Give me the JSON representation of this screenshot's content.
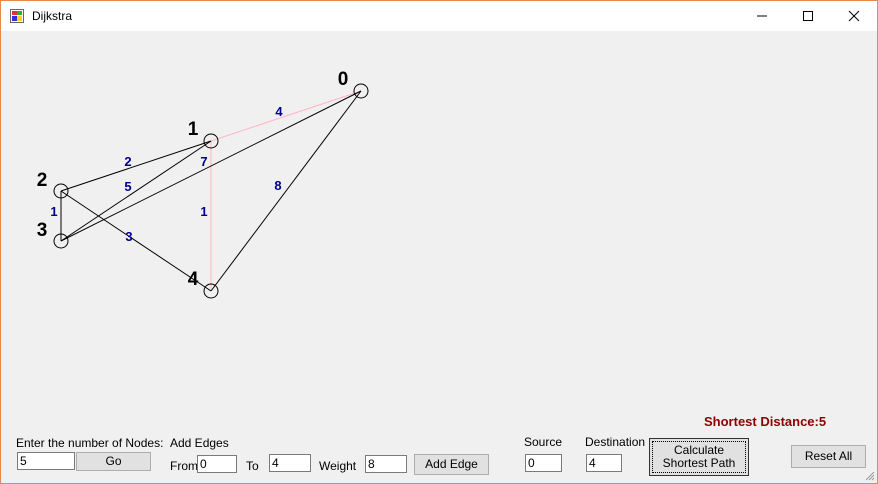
{
  "window": {
    "title": "Dijkstra"
  },
  "graph": {
    "nodes": [
      {
        "id": "0",
        "label": "0"
      },
      {
        "id": "1",
        "label": "1"
      },
      {
        "id": "2",
        "label": "2"
      },
      {
        "id": "3",
        "label": "3"
      },
      {
        "id": "4",
        "label": "4"
      }
    ],
    "edges": [
      {
        "from": "0",
        "to": "1",
        "weight": "4",
        "on_shortest_path": true
      },
      {
        "from": "1",
        "to": "4",
        "weight": "1",
        "on_shortest_path": true
      },
      {
        "from": "2",
        "to": "1",
        "weight": "2",
        "on_shortest_path": false
      },
      {
        "from": "3",
        "to": "1",
        "weight": "5",
        "on_shortest_path": false
      },
      {
        "from": "3",
        "to": "0",
        "weight": "7",
        "on_shortest_path": false
      },
      {
        "from": "2",
        "to": "3",
        "weight": "1",
        "on_shortest_path": false
      },
      {
        "from": "2",
        "to": "4",
        "weight": "3",
        "on_shortest_path": false
      },
      {
        "from": "0",
        "to": "4",
        "weight": "8",
        "on_shortest_path": false
      }
    ],
    "colors": {
      "edge": "#000000",
      "path_edge": "#ffb6c1",
      "weight": "#00008b",
      "node": "#000000"
    }
  },
  "controls": {
    "nodes_label": "Enter the number of Nodes:",
    "nodes_value": "5",
    "go_label": "Go",
    "add_edges_label": "Add Edges",
    "from_label": "From",
    "from_value": "0",
    "to_label": "To",
    "to_value": "4",
    "weight_label": "Weight",
    "weight_value": "8",
    "add_edge_label": "Add Edge",
    "source_label": "Source",
    "source_value": "0",
    "destination_label": "Destination",
    "destination_value": "4",
    "calculate_line1": "Calculate",
    "calculate_line2": "Shortest Path",
    "reset_label": "Reset All"
  },
  "result": {
    "shortest_distance": "Shortest Distance:5",
    "color": "#8b0000"
  }
}
